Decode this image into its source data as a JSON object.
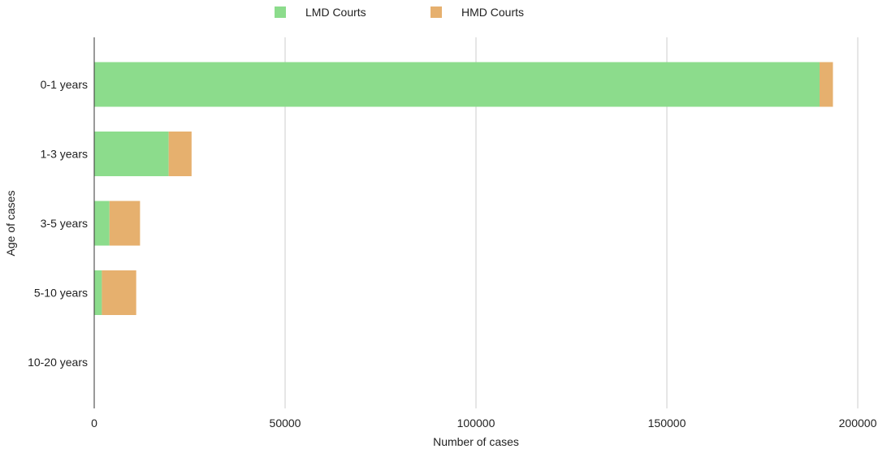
{
  "chart_data": {
    "type": "bar",
    "orientation": "horizontal",
    "stacked": true,
    "categories": [
      "0-1 years",
      "1-3 years",
      "3-5 years",
      "5-10 years",
      "10-20 years"
    ],
    "series": [
      {
        "name": "LMD Courts",
        "color": "#8cdc8c",
        "values": [
          190000,
          19500,
          4000,
          2000,
          0
        ]
      },
      {
        "name": "HMD Courts",
        "color": "#e6b06e",
        "values": [
          3500,
          6000,
          8000,
          9000,
          0
        ]
      }
    ],
    "xlabel": "Number of cases",
    "ylabel": "Age of cases",
    "xlim": [
      0,
      200000
    ],
    "xticks": [
      "0",
      "50000",
      "100000",
      "150000",
      "200000"
    ],
    "grid": "vertical",
    "legend": "top-center"
  }
}
